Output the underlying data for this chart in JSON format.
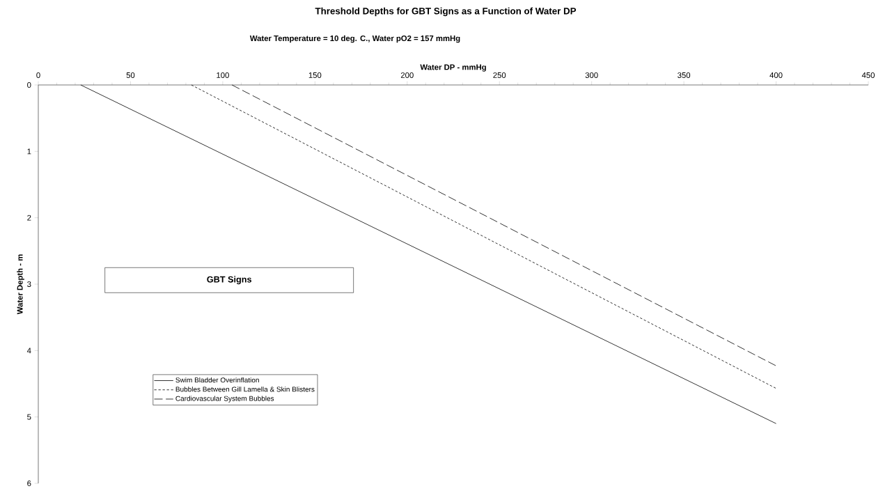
{
  "chart_data": {
    "type": "line",
    "title": "Threshold Depths for GBT Signs as a Function of Water DP",
    "subtitle": "Water Temperature = 10 deg. C.,  Water pO2 = 157 mmHg",
    "xlabel": "Water DP - mmHg",
    "ylabel": "Water Depth - m",
    "xlim": [
      0,
      450
    ],
    "xticks": [
      0,
      50,
      100,
      150,
      200,
      250,
      300,
      350,
      400,
      450
    ],
    "ylim": [
      6,
      0
    ],
    "yticks": [
      0,
      1,
      2,
      3,
      4,
      5,
      6
    ],
    "legend": "bottom left",
    "marker": "none",
    "annotations": [
      "GBT Signs"
    ],
    "series": [
      {
        "name": "Swim Bladder Overinflation",
        "color": "#000000",
        "line_style": "solid",
        "x": [
          23,
          400
        ],
        "values": [
          0,
          5.1
        ]
      },
      {
        "name": "Bubbles Between Gill Lamella & Skin Blisters",
        "color": "#000000",
        "line_style": "dotted",
        "x": [
          83,
          400
        ],
        "values": [
          0,
          4.57
        ]
      },
      {
        "name": "Cardiovascular System Bubbles",
        "color": "#000000",
        "line_style": "dashed",
        "x": [
          105,
          400
        ],
        "values": [
          0,
          4.23
        ]
      }
    ]
  }
}
